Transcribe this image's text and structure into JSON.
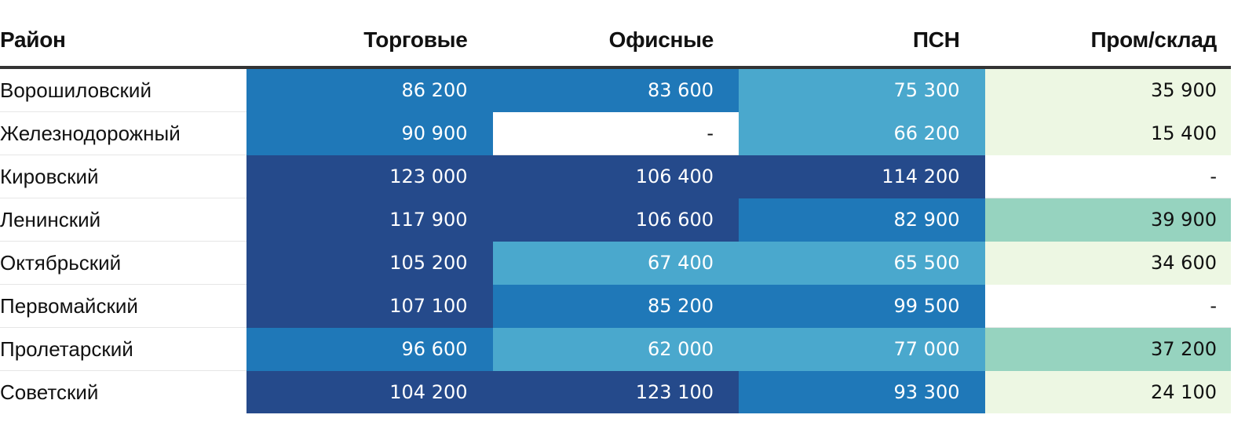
{
  "chart_data": {
    "type": "table",
    "columns": [
      "Район",
      "Торговые",
      "Офисные",
      "ПСН",
      "Пром/склад"
    ],
    "rows": [
      {
        "district": "Ворошиловский",
        "values": [
          "86 200",
          "83 600",
          "75 300",
          "35 900"
        ]
      },
      {
        "district": "Железнодорожный",
        "values": [
          "90 900",
          "-",
          "66 200",
          "15 400"
        ]
      },
      {
        "district": "Кировский",
        "values": [
          "123 000",
          "106 400",
          "114 200",
          "-"
        ]
      },
      {
        "district": "Ленинский",
        "values": [
          "117 900",
          "106 600",
          "82 900",
          "39 900"
        ]
      },
      {
        "district": "Октябрьский",
        "values": [
          "105 200",
          "67 400",
          "65 500",
          "34 600"
        ]
      },
      {
        "district": "Первомайский",
        "values": [
          "107 100",
          "85 200",
          "99 500",
          "-"
        ]
      },
      {
        "district": "Пролетарский",
        "values": [
          "96 600",
          "62 000",
          "77 000",
          "37 200"
        ]
      },
      {
        "district": "Советский",
        "values": [
          "104 200",
          "123 100",
          "93 300",
          "24 100"
        ]
      }
    ]
  },
  "colors": {
    "blue_dark": "#254a8b",
    "blue_mid": "#1f78b8",
    "blue_light": "#4aa8cd",
    "green_light": "#edf7e3",
    "green_mid": "#96d3bf",
    "text_light": "#ffffff",
    "text_dark": "#111111"
  }
}
